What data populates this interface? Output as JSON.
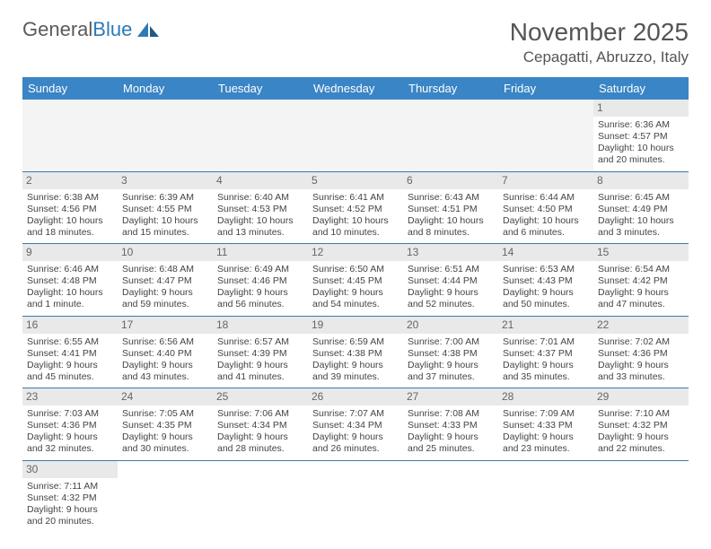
{
  "logo": {
    "text1": "General",
    "text2": "Blue"
  },
  "header": {
    "month": "November 2025",
    "location": "Cepagatti, Abruzzo, Italy"
  },
  "colors": {
    "header_bg": "#3a85c5",
    "header_fg": "#ffffff",
    "row_border": "#3a7aad",
    "daynum_bg": "#e9e9e9",
    "text": "#444444"
  },
  "weekdays": [
    "Sunday",
    "Monday",
    "Tuesday",
    "Wednesday",
    "Thursday",
    "Friday",
    "Saturday"
  ],
  "days": {
    "1": {
      "sr": "Sunrise: 6:36 AM",
      "ss": "Sunset: 4:57 PM",
      "d1": "Daylight: 10 hours",
      "d2": "and 20 minutes."
    },
    "2": {
      "sr": "Sunrise: 6:38 AM",
      "ss": "Sunset: 4:56 PM",
      "d1": "Daylight: 10 hours",
      "d2": "and 18 minutes."
    },
    "3": {
      "sr": "Sunrise: 6:39 AM",
      "ss": "Sunset: 4:55 PM",
      "d1": "Daylight: 10 hours",
      "d2": "and 15 minutes."
    },
    "4": {
      "sr": "Sunrise: 6:40 AM",
      "ss": "Sunset: 4:53 PM",
      "d1": "Daylight: 10 hours",
      "d2": "and 13 minutes."
    },
    "5": {
      "sr": "Sunrise: 6:41 AM",
      "ss": "Sunset: 4:52 PM",
      "d1": "Daylight: 10 hours",
      "d2": "and 10 minutes."
    },
    "6": {
      "sr": "Sunrise: 6:43 AM",
      "ss": "Sunset: 4:51 PM",
      "d1": "Daylight: 10 hours",
      "d2": "and 8 minutes."
    },
    "7": {
      "sr": "Sunrise: 6:44 AM",
      "ss": "Sunset: 4:50 PM",
      "d1": "Daylight: 10 hours",
      "d2": "and 6 minutes."
    },
    "8": {
      "sr": "Sunrise: 6:45 AM",
      "ss": "Sunset: 4:49 PM",
      "d1": "Daylight: 10 hours",
      "d2": "and 3 minutes."
    },
    "9": {
      "sr": "Sunrise: 6:46 AM",
      "ss": "Sunset: 4:48 PM",
      "d1": "Daylight: 10 hours",
      "d2": "and 1 minute."
    },
    "10": {
      "sr": "Sunrise: 6:48 AM",
      "ss": "Sunset: 4:47 PM",
      "d1": "Daylight: 9 hours",
      "d2": "and 59 minutes."
    },
    "11": {
      "sr": "Sunrise: 6:49 AM",
      "ss": "Sunset: 4:46 PM",
      "d1": "Daylight: 9 hours",
      "d2": "and 56 minutes."
    },
    "12": {
      "sr": "Sunrise: 6:50 AM",
      "ss": "Sunset: 4:45 PM",
      "d1": "Daylight: 9 hours",
      "d2": "and 54 minutes."
    },
    "13": {
      "sr": "Sunrise: 6:51 AM",
      "ss": "Sunset: 4:44 PM",
      "d1": "Daylight: 9 hours",
      "d2": "and 52 minutes."
    },
    "14": {
      "sr": "Sunrise: 6:53 AM",
      "ss": "Sunset: 4:43 PM",
      "d1": "Daylight: 9 hours",
      "d2": "and 50 minutes."
    },
    "15": {
      "sr": "Sunrise: 6:54 AM",
      "ss": "Sunset: 4:42 PM",
      "d1": "Daylight: 9 hours",
      "d2": "and 47 minutes."
    },
    "16": {
      "sr": "Sunrise: 6:55 AM",
      "ss": "Sunset: 4:41 PM",
      "d1": "Daylight: 9 hours",
      "d2": "and 45 minutes."
    },
    "17": {
      "sr": "Sunrise: 6:56 AM",
      "ss": "Sunset: 4:40 PM",
      "d1": "Daylight: 9 hours",
      "d2": "and 43 minutes."
    },
    "18": {
      "sr": "Sunrise: 6:57 AM",
      "ss": "Sunset: 4:39 PM",
      "d1": "Daylight: 9 hours",
      "d2": "and 41 minutes."
    },
    "19": {
      "sr": "Sunrise: 6:59 AM",
      "ss": "Sunset: 4:38 PM",
      "d1": "Daylight: 9 hours",
      "d2": "and 39 minutes."
    },
    "20": {
      "sr": "Sunrise: 7:00 AM",
      "ss": "Sunset: 4:38 PM",
      "d1": "Daylight: 9 hours",
      "d2": "and 37 minutes."
    },
    "21": {
      "sr": "Sunrise: 7:01 AM",
      "ss": "Sunset: 4:37 PM",
      "d1": "Daylight: 9 hours",
      "d2": "and 35 minutes."
    },
    "22": {
      "sr": "Sunrise: 7:02 AM",
      "ss": "Sunset: 4:36 PM",
      "d1": "Daylight: 9 hours",
      "d2": "and 33 minutes."
    },
    "23": {
      "sr": "Sunrise: 7:03 AM",
      "ss": "Sunset: 4:36 PM",
      "d1": "Daylight: 9 hours",
      "d2": "and 32 minutes."
    },
    "24": {
      "sr": "Sunrise: 7:05 AM",
      "ss": "Sunset: 4:35 PM",
      "d1": "Daylight: 9 hours",
      "d2": "and 30 minutes."
    },
    "25": {
      "sr": "Sunrise: 7:06 AM",
      "ss": "Sunset: 4:34 PM",
      "d1": "Daylight: 9 hours",
      "d2": "and 28 minutes."
    },
    "26": {
      "sr": "Sunrise: 7:07 AM",
      "ss": "Sunset: 4:34 PM",
      "d1": "Daylight: 9 hours",
      "d2": "and 26 minutes."
    },
    "27": {
      "sr": "Sunrise: 7:08 AM",
      "ss": "Sunset: 4:33 PM",
      "d1": "Daylight: 9 hours",
      "d2": "and 25 minutes."
    },
    "28": {
      "sr": "Sunrise: 7:09 AM",
      "ss": "Sunset: 4:33 PM",
      "d1": "Daylight: 9 hours",
      "d2": "and 23 minutes."
    },
    "29": {
      "sr": "Sunrise: 7:10 AM",
      "ss": "Sunset: 4:32 PM",
      "d1": "Daylight: 9 hours",
      "d2": "and 22 minutes."
    },
    "30": {
      "sr": "Sunrise: 7:11 AM",
      "ss": "Sunset: 4:32 PM",
      "d1": "Daylight: 9 hours",
      "d2": "and 20 minutes."
    }
  },
  "grid": [
    [
      null,
      null,
      null,
      null,
      null,
      null,
      "1"
    ],
    [
      "2",
      "3",
      "4",
      "5",
      "6",
      "7",
      "8"
    ],
    [
      "9",
      "10",
      "11",
      "12",
      "13",
      "14",
      "15"
    ],
    [
      "16",
      "17",
      "18",
      "19",
      "20",
      "21",
      "22"
    ],
    [
      "23",
      "24",
      "25",
      "26",
      "27",
      "28",
      "29"
    ],
    [
      "30",
      null,
      null,
      null,
      null,
      null,
      null
    ]
  ]
}
